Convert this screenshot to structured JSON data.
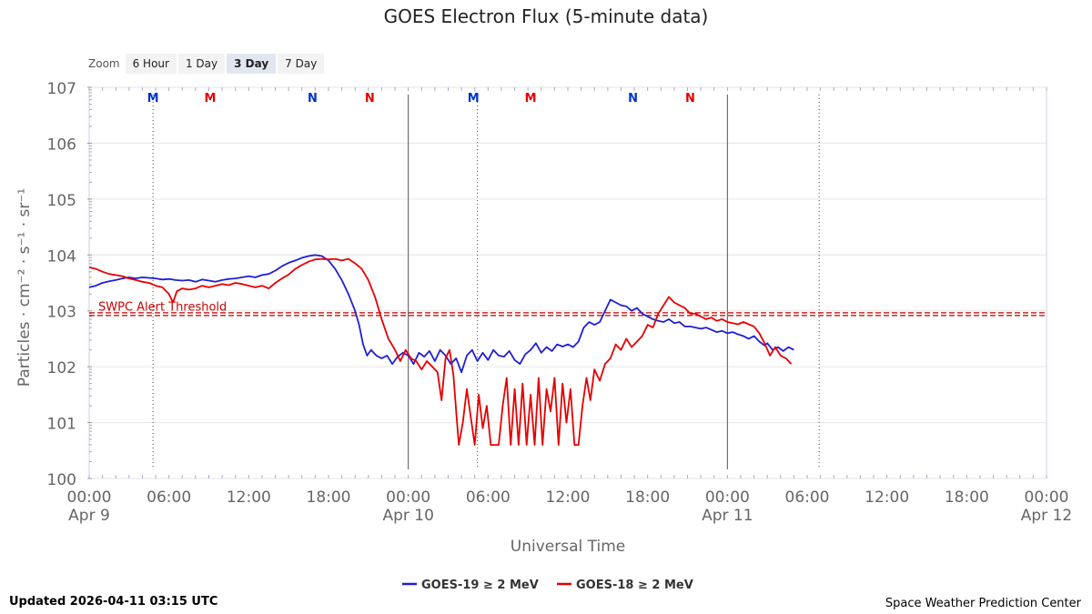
{
  "zoom": {
    "label": "Zoom",
    "buttons": [
      "6 Hour",
      "1 Day",
      "3 Day",
      "7 Day"
    ],
    "active": "3 Day"
  },
  "footer": {
    "updated": "Updated 2026-04-11 03:15 UTC",
    "source": "Space Weather Prediction Center"
  },
  "chart_data": {
    "type": "line",
    "title": "GOES Electron Flux (5-minute data)",
    "xlabel": "Universal Time",
    "ylabel": "Particles · cm⁻² · s⁻¹ · sr⁻¹",
    "y_scale": "log",
    "xlim_hours": [
      0,
      72
    ],
    "ylim_exp": [
      0,
      7
    ],
    "y_tick_labels": [
      "100",
      "101",
      "102",
      "103",
      "104",
      "105",
      "106",
      "107"
    ],
    "x_ticks": [
      {
        "h": 0,
        "time": "00:00",
        "date": "Apr 9"
      },
      {
        "h": 6,
        "time": "06:00",
        "date": ""
      },
      {
        "h": 12,
        "time": "12:00",
        "date": ""
      },
      {
        "h": 18,
        "time": "18:00",
        "date": ""
      },
      {
        "h": 24,
        "time": "00:00",
        "date": "Apr 10"
      },
      {
        "h": 30,
        "time": "06:00",
        "date": ""
      },
      {
        "h": 36,
        "time": "12:00",
        "date": ""
      },
      {
        "h": 42,
        "time": "18:00",
        "date": ""
      },
      {
        "h": 48,
        "time": "00:00",
        "date": "Apr 11"
      },
      {
        "h": 54,
        "time": "06:00",
        "date": ""
      },
      {
        "h": 60,
        "time": "12:00",
        "date": ""
      },
      {
        "h": 66,
        "time": "18:00",
        "date": ""
      },
      {
        "h": 72,
        "time": "00:00",
        "date": "Apr 12"
      }
    ],
    "day_lines_h": [
      24,
      48
    ],
    "dotted_lines_h": [
      4.8,
      29.2,
      54.9
    ],
    "threshold": {
      "label": "SWPC Alert Threshold",
      "value_exp": 2.94
    },
    "markers": [
      {
        "h": 4.8,
        "text": "M",
        "color": "#0033cc"
      },
      {
        "h": 9.1,
        "text": "M",
        "color": "#e60000"
      },
      {
        "h": 16.8,
        "text": "N",
        "color": "#0033cc"
      },
      {
        "h": 21.1,
        "text": "N",
        "color": "#e60000"
      },
      {
        "h": 28.9,
        "text": "M",
        "color": "#0033cc"
      },
      {
        "h": 33.2,
        "text": "M",
        "color": "#e60000"
      },
      {
        "h": 40.9,
        "text": "N",
        "color": "#0033cc"
      },
      {
        "h": 45.2,
        "text": "N",
        "color": "#e60000"
      }
    ],
    "series": [
      {
        "name": "GOES-19 ≥ 2 MeV",
        "color": "#1f1fd6",
        "points_h_exp": [
          [
            0,
            3.42
          ],
          [
            0.5,
            3.45
          ],
          [
            1,
            3.5
          ],
          [
            1.5,
            3.53
          ],
          [
            2,
            3.55
          ],
          [
            2.5,
            3.58
          ],
          [
            3,
            3.6
          ],
          [
            3.5,
            3.58
          ],
          [
            4,
            3.6
          ],
          [
            4.5,
            3.59
          ],
          [
            5,
            3.58
          ],
          [
            5.5,
            3.56
          ],
          [
            6,
            3.57
          ],
          [
            6.5,
            3.55
          ],
          [
            7,
            3.54
          ],
          [
            7.5,
            3.55
          ],
          [
            8,
            3.52
          ],
          [
            8.5,
            3.56
          ],
          [
            9,
            3.54
          ],
          [
            9.5,
            3.52
          ],
          [
            10,
            3.55
          ],
          [
            10.5,
            3.57
          ],
          [
            11,
            3.58
          ],
          [
            11.5,
            3.6
          ],
          [
            12,
            3.62
          ],
          [
            12.5,
            3.6
          ],
          [
            13,
            3.64
          ],
          [
            13.5,
            3.66
          ],
          [
            14,
            3.72
          ],
          [
            14.5,
            3.8
          ],
          [
            15,
            3.86
          ],
          [
            15.5,
            3.9
          ],
          [
            16,
            3.95
          ],
          [
            16.5,
            3.98
          ],
          [
            17,
            4.0
          ],
          [
            17.5,
            3.98
          ],
          [
            18,
            3.9
          ],
          [
            18.5,
            3.75
          ],
          [
            19,
            3.55
          ],
          [
            19.5,
            3.3
          ],
          [
            20,
            3.0
          ],
          [
            20.3,
            2.75
          ],
          [
            20.6,
            2.4
          ],
          [
            20.9,
            2.2
          ],
          [
            21.2,
            2.3
          ],
          [
            21.6,
            2.2
          ],
          [
            22,
            2.15
          ],
          [
            22.4,
            2.2
          ],
          [
            22.8,
            2.05
          ],
          [
            23.2,
            2.18
          ],
          [
            23.6,
            2.25
          ],
          [
            24,
            2.2
          ],
          [
            24.4,
            2.05
          ],
          [
            24.8,
            2.25
          ],
          [
            25.2,
            2.18
          ],
          [
            25.6,
            2.28
          ],
          [
            26,
            2.1
          ],
          [
            26.4,
            2.3
          ],
          [
            26.8,
            2.2
          ],
          [
            27.2,
            2.05
          ],
          [
            27.6,
            2.15
          ],
          [
            28,
            1.9
          ],
          [
            28.4,
            2.2
          ],
          [
            28.8,
            2.3
          ],
          [
            29.2,
            2.1
          ],
          [
            29.6,
            2.25
          ],
          [
            30,
            2.12
          ],
          [
            30.4,
            2.3
          ],
          [
            30.8,
            2.2
          ],
          [
            31.2,
            2.18
          ],
          [
            31.6,
            2.28
          ],
          [
            32,
            2.12
          ],
          [
            32.4,
            2.05
          ],
          [
            32.8,
            2.22
          ],
          [
            33.2,
            2.3
          ],
          [
            33.6,
            2.42
          ],
          [
            34,
            2.25
          ],
          [
            34.4,
            2.35
          ],
          [
            34.8,
            2.28
          ],
          [
            35.2,
            2.4
          ],
          [
            35.6,
            2.36
          ],
          [
            36,
            2.4
          ],
          [
            36.4,
            2.35
          ],
          [
            36.8,
            2.45
          ],
          [
            37.2,
            2.7
          ],
          [
            37.6,
            2.8
          ],
          [
            38,
            2.75
          ],
          [
            38.4,
            2.8
          ],
          [
            38.8,
            3.0
          ],
          [
            39.2,
            3.2
          ],
          [
            39.6,
            3.15
          ],
          [
            40,
            3.1
          ],
          [
            40.4,
            3.08
          ],
          [
            40.8,
            3.0
          ],
          [
            41.2,
            3.05
          ],
          [
            41.6,
            2.95
          ],
          [
            42,
            2.9
          ],
          [
            42.4,
            2.85
          ],
          [
            42.8,
            2.82
          ],
          [
            43.2,
            2.8
          ],
          [
            43.6,
            2.85
          ],
          [
            44,
            2.78
          ],
          [
            44.4,
            2.8
          ],
          [
            44.8,
            2.72
          ],
          [
            45.2,
            2.72
          ],
          [
            45.6,
            2.7
          ],
          [
            46,
            2.68
          ],
          [
            46.4,
            2.7
          ],
          [
            46.8,
            2.66
          ],
          [
            47.2,
            2.62
          ],
          [
            47.6,
            2.64
          ],
          [
            48,
            2.6
          ],
          [
            48.4,
            2.62
          ],
          [
            48.8,
            2.58
          ],
          [
            49.2,
            2.55
          ],
          [
            49.6,
            2.5
          ],
          [
            50,
            2.55
          ],
          [
            50.4,
            2.45
          ],
          [
            50.8,
            2.38
          ],
          [
            51,
            2.42
          ],
          [
            51.4,
            2.3
          ],
          [
            51.8,
            2.35
          ],
          [
            52.2,
            2.28
          ],
          [
            52.6,
            2.35
          ],
          [
            53,
            2.3
          ]
        ]
      },
      {
        "name": "GOES-18 ≥ 2 MeV",
        "color": "#e60000",
        "points_h_exp": [
          [
            0,
            3.78
          ],
          [
            0.5,
            3.75
          ],
          [
            1,
            3.7
          ],
          [
            1.5,
            3.66
          ],
          [
            2,
            3.64
          ],
          [
            2.5,
            3.62
          ],
          [
            3,
            3.58
          ],
          [
            3.5,
            3.55
          ],
          [
            4,
            3.52
          ],
          [
            4.5,
            3.5
          ],
          [
            5,
            3.45
          ],
          [
            5.5,
            3.42
          ],
          [
            6,
            3.3
          ],
          [
            6.3,
            3.15
          ],
          [
            6.6,
            3.35
          ],
          [
            7,
            3.4
          ],
          [
            7.5,
            3.38
          ],
          [
            8,
            3.4
          ],
          [
            8.5,
            3.45
          ],
          [
            9,
            3.42
          ],
          [
            9.5,
            3.45
          ],
          [
            10,
            3.48
          ],
          [
            10.5,
            3.46
          ],
          [
            11,
            3.5
          ],
          [
            11.5,
            3.48
          ],
          [
            12,
            3.45
          ],
          [
            12.5,
            3.42
          ],
          [
            13,
            3.45
          ],
          [
            13.5,
            3.4
          ],
          [
            14,
            3.5
          ],
          [
            14.5,
            3.58
          ],
          [
            15,
            3.65
          ],
          [
            15.5,
            3.75
          ],
          [
            16,
            3.82
          ],
          [
            16.5,
            3.88
          ],
          [
            17,
            3.92
          ],
          [
            17.5,
            3.93
          ],
          [
            18,
            3.92
          ],
          [
            18.5,
            3.93
          ],
          [
            19,
            3.9
          ],
          [
            19.5,
            3.93
          ],
          [
            20,
            3.85
          ],
          [
            20.5,
            3.75
          ],
          [
            21,
            3.55
          ],
          [
            21.5,
            3.25
          ],
          [
            22,
            2.85
          ],
          [
            22.5,
            2.5
          ],
          [
            23,
            2.3
          ],
          [
            23.4,
            2.1
          ],
          [
            23.8,
            2.3
          ],
          [
            24.2,
            2.15
          ],
          [
            24.6,
            2.1
          ],
          [
            25,
            1.95
          ],
          [
            25.4,
            2.1
          ],
          [
            25.8,
            2.0
          ],
          [
            26.2,
            1.9
          ],
          [
            26.5,
            1.4
          ],
          [
            26.8,
            2.15
          ],
          [
            27.1,
            2.3
          ],
          [
            27.4,
            1.85
          ],
          [
            27.6,
            1.2
          ],
          [
            27.8,
            0.6
          ],
          [
            28.1,
            1.0
          ],
          [
            28.4,
            1.6
          ],
          [
            28.7,
            1.1
          ],
          [
            29,
            0.6
          ],
          [
            29.3,
            1.5
          ],
          [
            29.6,
            0.9
          ],
          [
            29.9,
            1.3
          ],
          [
            30.2,
            0.6
          ],
          [
            30.5,
            0.6
          ],
          [
            30.8,
            0.6
          ],
          [
            31.1,
            1.3
          ],
          [
            31.4,
            1.8
          ],
          [
            31.7,
            0.6
          ],
          [
            32,
            1.6
          ],
          [
            32.3,
            0.6
          ],
          [
            32.6,
            1.7
          ],
          [
            32.9,
            0.6
          ],
          [
            33.2,
            1.5
          ],
          [
            33.5,
            0.6
          ],
          [
            33.8,
            1.8
          ],
          [
            34.1,
            0.6
          ],
          [
            34.4,
            1.6
          ],
          [
            34.7,
            1.2
          ],
          [
            35,
            1.8
          ],
          [
            35.3,
            0.6
          ],
          [
            35.6,
            1.7
          ],
          [
            35.9,
            1.0
          ],
          [
            36.2,
            1.6
          ],
          [
            36.5,
            0.6
          ],
          [
            36.8,
            0.6
          ],
          [
            37.1,
            1.3
          ],
          [
            37.4,
            1.8
          ],
          [
            37.7,
            1.4
          ],
          [
            38,
            1.95
          ],
          [
            38.4,
            1.75
          ],
          [
            38.8,
            2.05
          ],
          [
            39.2,
            2.15
          ],
          [
            39.6,
            2.4
          ],
          [
            40,
            2.3
          ],
          [
            40.4,
            2.5
          ],
          [
            40.8,
            2.35
          ],
          [
            41.2,
            2.45
          ],
          [
            41.6,
            2.55
          ],
          [
            42,
            2.75
          ],
          [
            42.4,
            2.7
          ],
          [
            42.8,
            2.95
          ],
          [
            43.2,
            3.1
          ],
          [
            43.6,
            3.25
          ],
          [
            44,
            3.15
          ],
          [
            44.4,
            3.1
          ],
          [
            44.8,
            3.05
          ],
          [
            45.2,
            2.95
          ],
          [
            45.6,
            2.95
          ],
          [
            46,
            2.9
          ],
          [
            46.4,
            2.85
          ],
          [
            46.8,
            2.88
          ],
          [
            47.2,
            2.82
          ],
          [
            47.6,
            2.85
          ],
          [
            48,
            2.8
          ],
          [
            48.4,
            2.78
          ],
          [
            48.8,
            2.76
          ],
          [
            49.2,
            2.8
          ],
          [
            49.6,
            2.76
          ],
          [
            50,
            2.72
          ],
          [
            50.4,
            2.6
          ],
          [
            50.8,
            2.42
          ],
          [
            51.2,
            2.2
          ],
          [
            51.6,
            2.35
          ],
          [
            52,
            2.2
          ],
          [
            52.4,
            2.15
          ],
          [
            52.8,
            2.05
          ]
        ]
      }
    ]
  }
}
